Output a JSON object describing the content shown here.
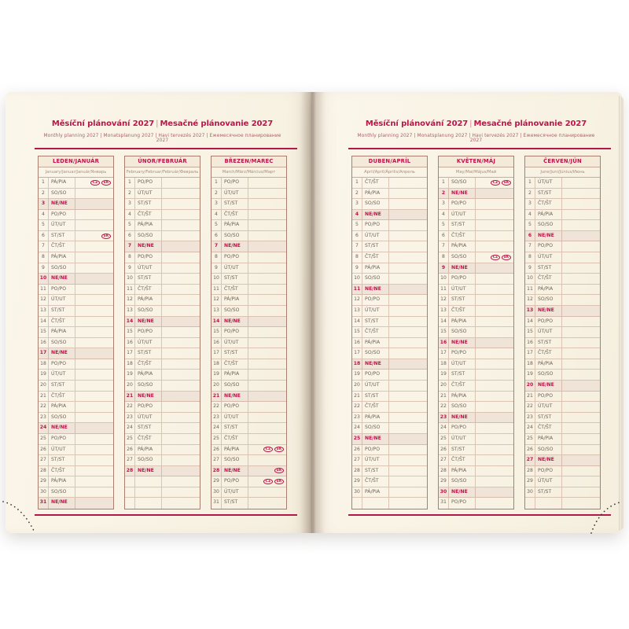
{
  "header": {
    "title_cz": "Měsíční plánování 2027",
    "title_divider": "|",
    "title_sk": "Mesačné plánovanie 2027",
    "subtitle": "Monthly planning 2027 | Monatsplanung 2027 | Havi tervezés 2027 | Ежемесячное планирование 2027"
  },
  "colors": {
    "accent_magenta": "#c01349",
    "paper_cream": "#f8f2e3",
    "sunday_row_bg": "#f0e3d7",
    "grid_line": "#b08470",
    "body_text": "#6e6257"
  },
  "weekday_labels": [
    "PO/PO",
    "ÚT/UT",
    "ST/ST",
    "ČT/ŠT",
    "PÁ/PIA",
    "SO/SO",
    "NE/NE"
  ],
  "holiday_badge_labels": [
    "CZ",
    "SK"
  ],
  "rows_per_table": 31,
  "pages": [
    {
      "side": "left",
      "month_ids": [
        "leden",
        "unor",
        "brezen"
      ]
    },
    {
      "side": "right",
      "month_ids": [
        "duben",
        "kveten",
        "cerven"
      ]
    }
  ],
  "months": [
    {
      "id": "leden",
      "name": "LEDEN/JANUÁR",
      "subtitle": "January/Januar/Január/Январь",
      "days": [
        "PÁ/PIA",
        "SO/SO",
        "NE/NE",
        "PO/PO",
        "ÚT/UT",
        "ST/ST",
        "ČT/ŠT",
        "PÁ/PIA",
        "SO/SO",
        "NE/NE",
        "PO/PO",
        "ÚT/UT",
        "ST/ST",
        "ČT/ŠT",
        "PÁ/PIA",
        "SO/SO",
        "NE/NE",
        "PO/PO",
        "ÚT/UT",
        "ST/ST",
        "ČT/ŠT",
        "PÁ/PIA",
        "SO/SO",
        "NE/NE",
        "PO/PO",
        "ÚT/UT",
        "ST/ST",
        "ČT/ŠT",
        "PÁ/PIA",
        "SO/SO",
        "NE/NE"
      ],
      "badges": {
        "1": [
          "CZ",
          "SK"
        ],
        "6": [
          "SK"
        ]
      }
    },
    {
      "id": "unor",
      "name": "ÚNOR/FEBRUÁR",
      "subtitle": "February/Februar/Február/Февраль",
      "days": [
        "PO/PO",
        "ÚT/UT",
        "ST/ST",
        "ČT/ŠT",
        "PÁ/PIA",
        "SO/SO",
        "NE/NE",
        "PO/PO",
        "ÚT/UT",
        "ST/ST",
        "ČT/ŠT",
        "PÁ/PIA",
        "SO/SO",
        "NE/NE",
        "PO/PO",
        "ÚT/UT",
        "ST/ST",
        "ČT/ŠT",
        "PÁ/PIA",
        "SO/SO",
        "NE/NE",
        "PO/PO",
        "ÚT/UT",
        "ST/ST",
        "ČT/ŠT",
        "PÁ/PIA",
        "SO/SO",
        "NE/NE"
      ],
      "badges": {}
    },
    {
      "id": "brezen",
      "name": "BŘEZEN/MAREC",
      "subtitle": "March/März/Március/Март",
      "days": [
        "PO/PO",
        "ÚT/UT",
        "ST/ST",
        "ČT/ŠT",
        "PÁ/PIA",
        "SO/SO",
        "NE/NE",
        "PO/PO",
        "ÚT/UT",
        "ST/ST",
        "ČT/ŠT",
        "PÁ/PIA",
        "SO/SO",
        "NE/NE",
        "PO/PO",
        "ÚT/UT",
        "ST/ST",
        "ČT/ŠT",
        "PÁ/PIA",
        "SO/SO",
        "NE/NE",
        "PO/PO",
        "ÚT/UT",
        "ST/ST",
        "ČT/ŠT",
        "PÁ/PIA",
        "SO/SO",
        "NE/NE",
        "PO/PO",
        "ÚT/UT",
        "ST/ST"
      ],
      "badges": {
        "26": [
          "CZ",
          "SK"
        ],
        "28": [
          "SK"
        ],
        "29": [
          "CZ",
          "SK"
        ]
      }
    },
    {
      "id": "duben",
      "name": "DUBEN/APRÍL",
      "subtitle": "April/April/Április/Апрель",
      "days": [
        "ČT/ŠT",
        "PÁ/PIA",
        "SO/SO",
        "NE/NE",
        "PO/PO",
        "ÚT/UT",
        "ST/ST",
        "ČT/ŠT",
        "PÁ/PIA",
        "SO/SO",
        "NE/NE",
        "PO/PO",
        "ÚT/UT",
        "ST/ST",
        "ČT/ŠT",
        "PÁ/PIA",
        "SO/SO",
        "NE/NE",
        "PO/PO",
        "ÚT/UT",
        "ST/ST",
        "ČT/ŠT",
        "PÁ/PIA",
        "SO/SO",
        "NE/NE",
        "PO/PO",
        "ÚT/UT",
        "ST/ST",
        "ČT/ŠT",
        "PÁ/PIA"
      ],
      "badges": {}
    },
    {
      "id": "kveten",
      "name": "KVĚTEN/MÁJ",
      "subtitle": "May/Mai/Május/Май",
      "days": [
        "SO/SO",
        "NE/NE",
        "PO/PO",
        "ÚT/UT",
        "ST/ST",
        "ČT/ŠT",
        "PÁ/PIA",
        "SO/SO",
        "NE/NE",
        "PO/PO",
        "ÚT/UT",
        "ST/ST",
        "ČT/ŠT",
        "PÁ/PIA",
        "SO/SO",
        "NE/NE",
        "PO/PO",
        "ÚT/UT",
        "ST/ST",
        "ČT/ŠT",
        "PÁ/PIA",
        "SO/SO",
        "NE/NE",
        "PO/PO",
        "ÚT/UT",
        "ST/ST",
        "ČT/ŠT",
        "PÁ/PIA",
        "SO/SO",
        "NE/NE",
        "PO/PO"
      ],
      "badges": {
        "1": [
          "CZ",
          "SK"
        ],
        "8": [
          "CZ",
          "SK"
        ]
      }
    },
    {
      "id": "cerven",
      "name": "ČERVEN/JÚN",
      "subtitle": "June/Juni/Június/Июнь",
      "days": [
        "ÚT/UT",
        "ST/ST",
        "ČT/ŠT",
        "PÁ/PIA",
        "SO/SO",
        "NE/NE",
        "PO/PO",
        "ÚT/UT",
        "ST/ST",
        "ČT/ŠT",
        "PÁ/PIA",
        "SO/SO",
        "NE/NE",
        "PO/PO",
        "ÚT/UT",
        "ST/ST",
        "ČT/ŠT",
        "PÁ/PIA",
        "SO/SO",
        "NE/NE",
        "PO/PO",
        "ÚT/UT",
        "ST/ST",
        "ČT/ŠT",
        "PÁ/PIA",
        "SO/SO",
        "NE/NE",
        "PO/PO",
        "ÚT/UT",
        "ST/ST"
      ],
      "badges": {}
    }
  ]
}
